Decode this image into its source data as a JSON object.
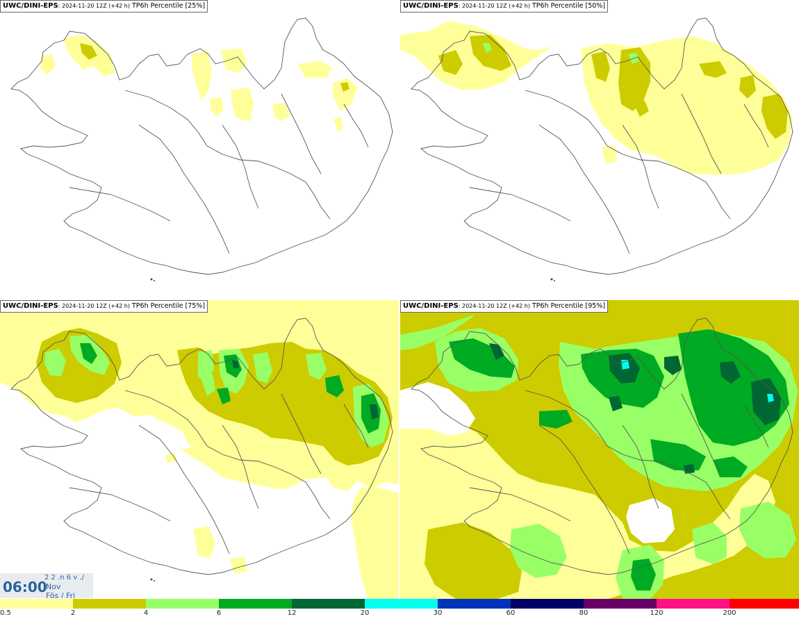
{
  "panels": [
    {
      "source": "UWC/DINI-EPS",
      "run": ": 2024-11-20 12Z (+42 h)",
      "field": " TP6h Percentile [25%]"
    },
    {
      "source": "UWC/DINI-EPS",
      "run": ": 2024-11-20 12Z (+42 h)",
      "field": " TP6h Percentile [50%]"
    },
    {
      "source": "UWC/DINI-EPS",
      "run": ": 2024-11-20 12Z (+42 h)",
      "field": " TP6h Percentile [75%]"
    },
    {
      "source": "UWC/DINI-EPS",
      "run": ": 2024-11-20 12Z (+42 h)",
      "field": " TP6h Percentile [95%]"
    }
  ],
  "time_badge": {
    "clock": "06:00",
    "date": "2 2 .n 6 v ./",
    "month": "Nov",
    "weekday": "Fös / Fri"
  },
  "legend": {
    "labels": [
      "0.5",
      "2",
      "4",
      "6",
      "12",
      "20",
      "30",
      "60",
      "80",
      "120",
      "200"
    ],
    "colors": [
      "#ffff99",
      "#cccc00",
      "#99ff66",
      "#00aa22",
      "#006633",
      "#00ffee",
      "#0033bb",
      "#000066",
      "#660066",
      "#ff1188",
      "#ff0000"
    ]
  },
  "colors": {
    "c1": "#ffff99",
    "c2": "#cccc00",
    "c3": "#99ff66",
    "c4": "#00aa22",
    "c5": "#006633",
    "c6": "#00ffee"
  }
}
